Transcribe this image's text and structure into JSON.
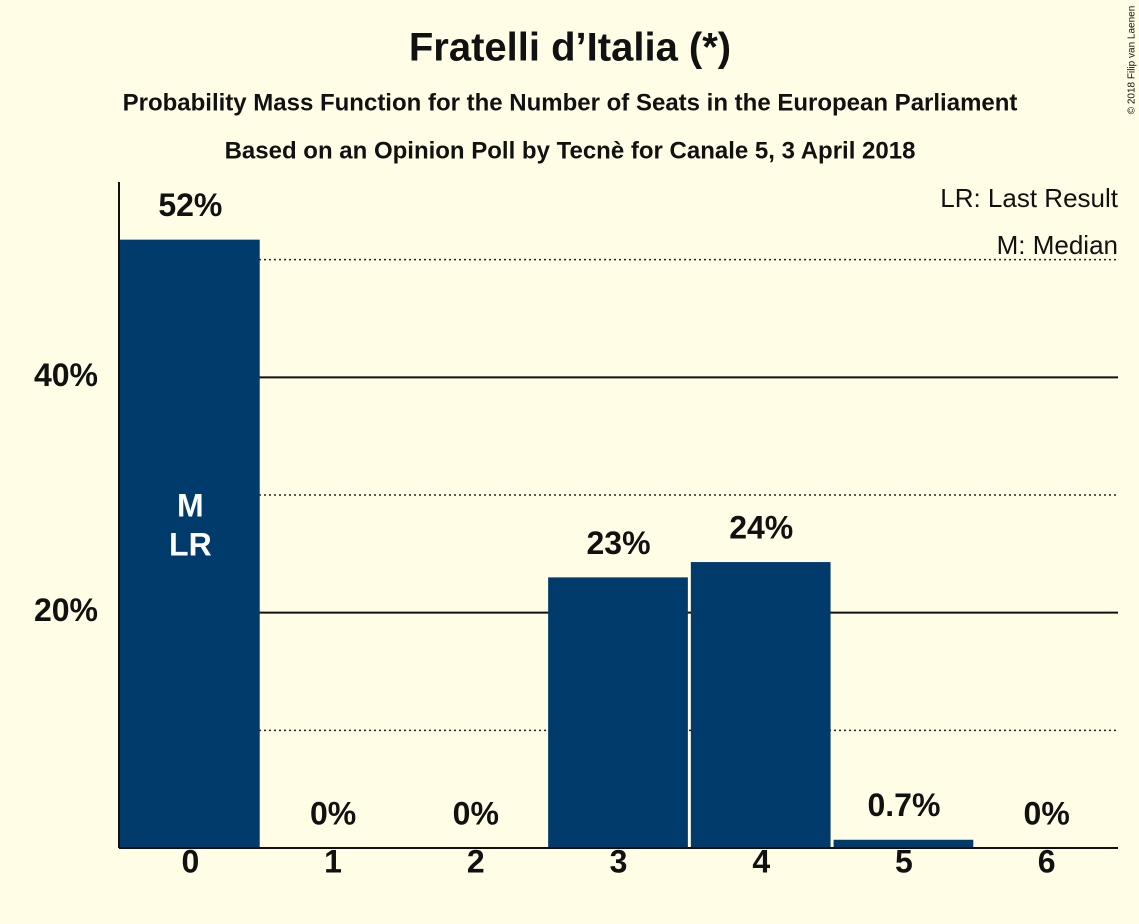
{
  "chart_data": {
    "type": "bar",
    "title": "Fratelli d’Italia (*)",
    "subtitle": "Probability Mass Function for the Number of Seats in the European Parliament",
    "subtitle2": "Based on an Opinion Poll by Tecnè for Canale 5, 3 April 2018",
    "categories": [
      "0",
      "1",
      "2",
      "3",
      "4",
      "5",
      "6"
    ],
    "values": [
      51.7,
      0,
      0,
      23,
      24.3,
      0.7,
      0
    ],
    "value_labels": [
      "52%",
      "0%",
      "0%",
      "23%",
      "24%",
      "0.7%",
      "0%"
    ],
    "inner_labels": [
      [
        "M",
        "LR"
      ],
      null,
      null,
      null,
      null,
      null,
      null
    ],
    "color": "#003b6b",
    "ylim": [
      0,
      56.6
    ],
    "yticks": [
      {
        "value": 20,
        "label": "20%"
      },
      {
        "value": 40,
        "label": "40%"
      }
    ],
    "minor_yticks": [
      10,
      30,
      50
    ],
    "grid": true,
    "legend_notes": [
      "LR: Last Result",
      "M: Median"
    ],
    "credit": "© 2018 Filip van Laenen"
  }
}
